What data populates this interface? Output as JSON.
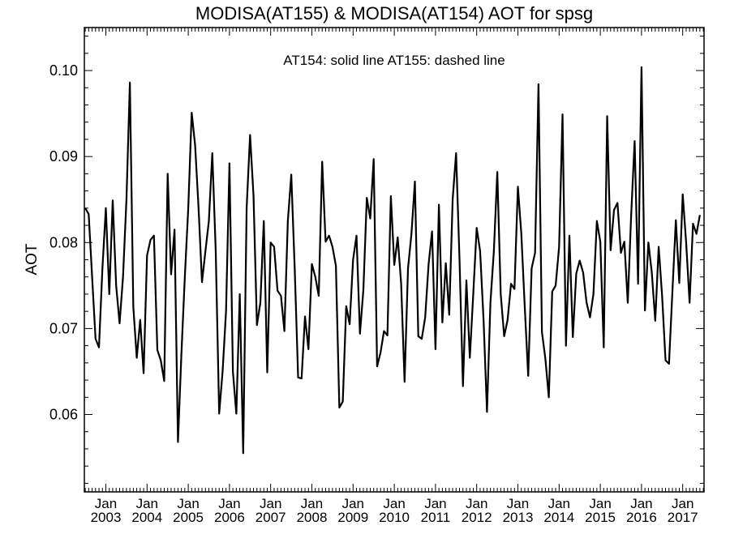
{
  "chart_data": {
    "type": "line",
    "title": "MODISA(AT155) & MODISA(AT154)  AOT for spsg",
    "annotation": "AT154: solid line   AT155: dashed line",
    "ylabel": "AOT",
    "xlabel": "",
    "xlim": [
      "2002-07",
      "2017-09"
    ],
    "ylim": [
      0.051,
      0.105
    ],
    "yticks": [
      0.06,
      0.07,
      0.08,
      0.09,
      0.1
    ],
    "ytick_labels": [
      "0.06",
      "0.07",
      "0.08",
      "0.09",
      "0.10"
    ],
    "xticks": [
      {
        "month": "Jan",
        "year": "2003"
      },
      {
        "month": "Jan",
        "year": "2004"
      },
      {
        "month": "Jan",
        "year": "2005"
      },
      {
        "month": "Jan",
        "year": "2006"
      },
      {
        "month": "Jan",
        "year": "2007"
      },
      {
        "month": "Jan",
        "year": "2008"
      },
      {
        "month": "Jan",
        "year": "2009"
      },
      {
        "month": "Jan",
        "year": "2010"
      },
      {
        "month": "Jan",
        "year": "2011"
      },
      {
        "month": "Jan",
        "year": "2012"
      },
      {
        "month": "Jan",
        "year": "2013"
      },
      {
        "month": "Jan",
        "year": "2014"
      },
      {
        "month": "Jan",
        "year": "2015"
      },
      {
        "month": "Jan",
        "year": "2016"
      },
      {
        "month": "Jan",
        "year": "2017"
      }
    ],
    "series": [
      {
        "line_style": "solid",
        "color": "#000000",
        "x_start": "2002-07",
        "x_step": "1 month",
        "values": [
          0.084,
          0.0833,
          0.076,
          0.0688,
          0.0678,
          0.077,
          0.084,
          0.074,
          0.0849,
          0.075,
          0.0706,
          0.076,
          0.085,
          0.0986,
          0.0725,
          0.0666,
          0.071,
          0.0648,
          0.0785,
          0.0803,
          0.0808,
          0.0675,
          0.0663,
          0.0639,
          0.088,
          0.0763,
          0.0815,
          0.0568,
          0.067,
          0.076,
          0.084,
          0.0951,
          0.0913,
          0.084,
          0.0754,
          0.079,
          0.0825,
          0.0904,
          0.079,
          0.0601,
          0.065,
          0.072,
          0.0892,
          0.065,
          0.0601,
          0.074,
          0.0555,
          0.084,
          0.0925,
          0.0855,
          0.0704,
          0.073,
          0.0825,
          0.0649,
          0.08,
          0.0795,
          0.0744,
          0.0738,
          0.0697,
          0.0825,
          0.0879,
          0.077,
          0.0643,
          0.0642,
          0.0714,
          0.0676,
          0.0775,
          0.076,
          0.0738,
          0.0894,
          0.0801,
          0.0808,
          0.0795,
          0.0773,
          0.0608,
          0.0615,
          0.0726,
          0.0705,
          0.078,
          0.0808,
          0.0694,
          0.0745,
          0.0852,
          0.0828,
          0.0897,
          0.0656,
          0.0672,
          0.0697,
          0.0692,
          0.0854,
          0.0774,
          0.0806,
          0.0752,
          0.0638,
          0.077,
          0.081,
          0.0871,
          0.0691,
          0.0688,
          0.0713,
          0.0775,
          0.0813,
          0.0676,
          0.0844,
          0.0707,
          0.0776,
          0.0716,
          0.085,
          0.0904,
          0.078,
          0.0633,
          0.0756,
          0.0666,
          0.074,
          0.0817,
          0.079,
          0.071,
          0.0603,
          0.073,
          0.079,
          0.0882,
          0.074,
          0.0691,
          0.071,
          0.0752,
          0.0746,
          0.0865,
          0.081,
          0.0725,
          0.0645,
          0.077,
          0.0788,
          0.0984,
          0.0696,
          0.0665,
          0.062,
          0.0743,
          0.075,
          0.0795,
          0.0949,
          0.068,
          0.0808,
          0.069,
          0.0764,
          0.0779,
          0.0765,
          0.073,
          0.0713,
          0.074,
          0.0825,
          0.0801,
          0.0678,
          0.0947,
          0.0791,
          0.0838,
          0.0846,
          0.0788,
          0.0801,
          0.073,
          0.0833,
          0.0918,
          0.0752,
          0.1004,
          0.0721,
          0.08,
          0.0765,
          0.0709,
          0.0795,
          0.0738,
          0.0663,
          0.0659,
          0.0743,
          0.0826,
          0.0753,
          0.0856,
          0.08,
          0.073,
          0.0822,
          0.081,
          0.0832
        ]
      }
    ],
    "grid": false,
    "legend": "none"
  }
}
